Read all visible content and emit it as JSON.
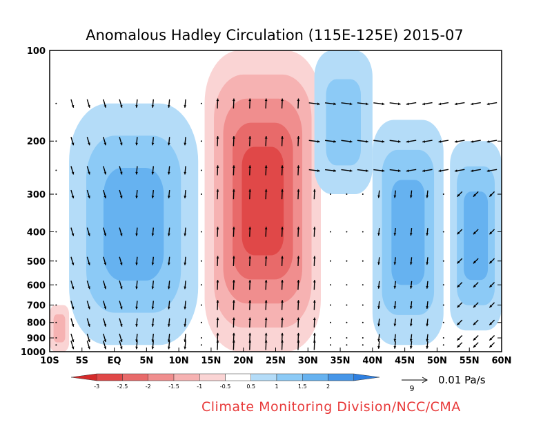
{
  "chart_data": {
    "type": "heatmap",
    "title": "Anomalous Hadley Circulation (115E-125E)  2015-07",
    "x_tick_labels": [
      "10S",
      "5S",
      "EQ",
      "5N",
      "10N",
      "15N",
      "20N",
      "25N",
      "30N",
      "35N",
      "40N",
      "45N",
      "50N",
      "55N",
      "60N"
    ],
    "x_values": [
      -10,
      -5,
      0,
      5,
      10,
      15,
      20,
      25,
      30,
      35,
      40,
      45,
      50,
      55,
      60
    ],
    "xlim": [
      -10,
      60
    ],
    "y_tick_labels": [
      "100",
      "200",
      "300",
      "400",
      "500",
      "600",
      "700",
      "800",
      "900",
      "1000"
    ],
    "y_values": [
      100,
      200,
      300,
      400,
      500,
      600,
      700,
      800,
      900,
      1000
    ],
    "ylim": [
      1000,
      100
    ],
    "y_scale": "log",
    "colorbar": {
      "tick_labels": [
        "-3",
        "-2.5",
        "-2",
        "-1.5",
        "-1",
        "-0.5",
        "0.5",
        "1",
        "1.5",
        "2"
      ],
      "levels": [
        -3,
        -2.5,
        -2,
        -1.5,
        -1,
        -0.5,
        0.5,
        1,
        1.5,
        2
      ],
      "colors": [
        "#d42a2a",
        "#e04848",
        "#e86a6a",
        "#f08e8e",
        "#f6b2b2",
        "#fad4d4",
        "#ffffff",
        "#b4dcf8",
        "#8ccaf6",
        "#66b2f0",
        "#4696e8",
        "#2e7fe0"
      ],
      "position": "bottom"
    },
    "vector_reference": {
      "value": "9",
      "label": "0.01 Pa/s"
    },
    "regions": [
      {
        "sign": "negative",
        "lat_range": [
          -7,
          13
        ],
        "lev_range": [
          150,
          950
        ],
        "peak": 1.5
      },
      {
        "sign": "positive",
        "lat_range": [
          14,
          32
        ],
        "lev_range": [
          100,
          1000
        ],
        "peak": -2.5
      },
      {
        "sign": "negative",
        "lat_range": [
          31,
          40
        ],
        "lev_range": [
          100,
          300
        ],
        "peak": 1.0
      },
      {
        "sign": "negative",
        "lat_range": [
          40,
          51
        ],
        "lev_range": [
          170,
          950
        ],
        "peak": 1.5
      },
      {
        "sign": "negative",
        "lat_range": [
          52,
          60
        ],
        "lev_range": [
          200,
          850
        ],
        "peak": 1.5
      },
      {
        "sign": "positive",
        "lat_range": [
          -10,
          -7
        ],
        "lev_range": [
          700,
          1000
        ],
        "peak": -1.0
      }
    ],
    "grid": false
  },
  "credit": "Climate Monitoring Division/NCC/CMA"
}
